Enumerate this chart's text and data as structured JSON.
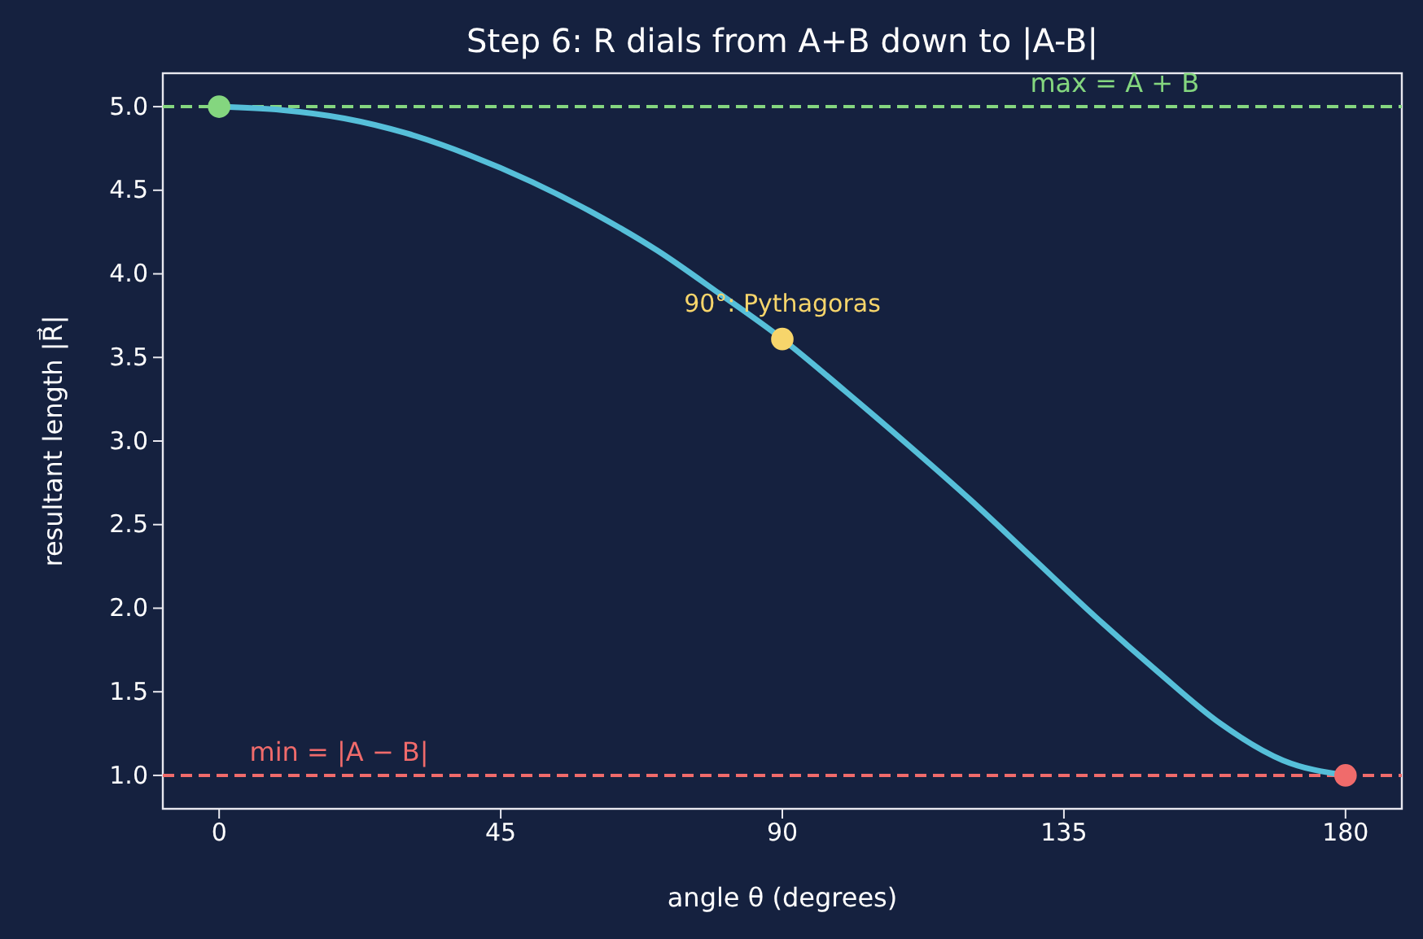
{
  "chart_data": {
    "type": "line",
    "title": "Step 6: R dials from A+B down to |A-B|",
    "xlabel": "angle θ (degrees)",
    "ylabel": "resultant length |R⃗|",
    "xlim": [
      -9,
      189
    ],
    "xticks": [
      0,
      45,
      90,
      135,
      180
    ],
    "ylim": [
      0.8,
      5.2
    ],
    "yticks": [
      {
        "value": 1,
        "label": "1.0"
      },
      1.5,
      {
        "value": 2,
        "label": "2.0"
      },
      2.5,
      {
        "value": 3,
        "label": "3.0"
      },
      3.5,
      {
        "value": 4,
        "label": "4.0"
      },
      4.5,
      {
        "value": 5,
        "label": "5.0"
      }
    ],
    "grid": false,
    "series": [
      {
        "color": "#56bfd9",
        "x": [
          0,
          10,
          20,
          30,
          40,
          50,
          60,
          70,
          80,
          90,
          100,
          110,
          120,
          130,
          140,
          150,
          160,
          170,
          180
        ],
        "values": [
          5,
          4.98,
          4.93,
          4.84,
          4.71,
          4.55,
          4.36,
          4.14,
          3.88,
          3.61,
          3.3,
          2.98,
          2.65,
          2.3,
          1.95,
          1.62,
          1.31,
          1.09,
          1
        ]
      },
      {
        "type": "scatter",
        "marker": "circle",
        "x": [
          0,
          90,
          180
        ],
        "values": [
          5,
          3.61,
          1
        ],
        "colors": [
          "#84d67f",
          "#f7d56b",
          "#f06b6b"
        ]
      }
    ],
    "ref_lines": [
      {
        "axis": "y",
        "value": 5,
        "label": "max  = A + B",
        "color": "#84d67f",
        "line_style": "dashed"
      },
      {
        "axis": "y",
        "value": 1,
        "label": "min  = |A − B|",
        "color": "#f06b6b",
        "line_style": "dashed"
      }
    ],
    "annotations": [
      {
        "text": "90°: Pythagoras",
        "x": 90,
        "y": 3.61
      }
    ]
  }
}
